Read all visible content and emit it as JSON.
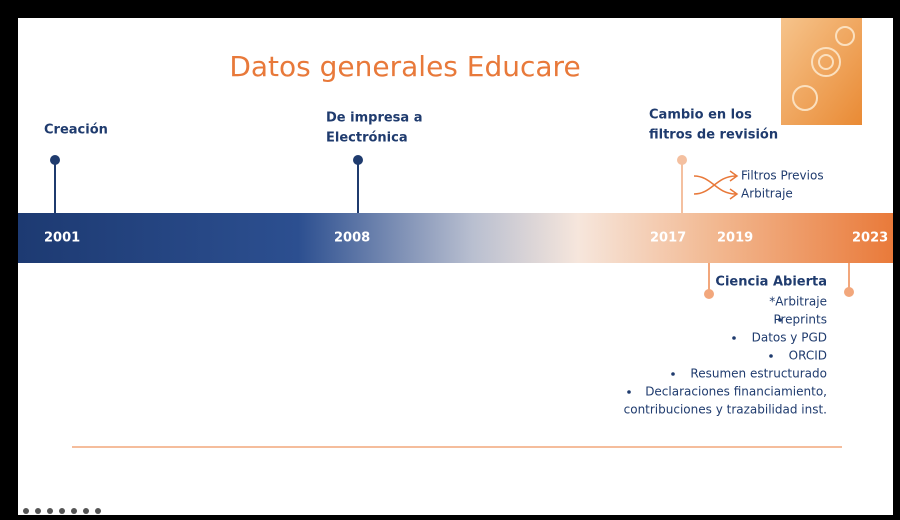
{
  "header": {
    "title": "Datos generales Educare"
  },
  "timeline": {
    "years": [
      "2001",
      "2008",
      "2017",
      "2019",
      "2023"
    ],
    "events": [
      {
        "lines": [
          "Creación"
        ]
      },
      {
        "lines": [
          "De impresa a",
          "Electrónica"
        ]
      },
      {
        "lines": [
          "Cambio en los",
          "filtros de revisión"
        ]
      }
    ],
    "branch": [
      "Filtros Previos",
      "Arbitraje"
    ],
    "ciencia_abierta": {
      "title": "Ciencia Abierta",
      "items": [
        "*Arbitraje",
        "Preprints",
        "Datos y PGD",
        "ORCID",
        "Resumen estructurado"
      ],
      "last_item": [
        "Declaraciones financiamiento,",
        "contribuciones y trazabilidad inst."
      ]
    }
  }
}
